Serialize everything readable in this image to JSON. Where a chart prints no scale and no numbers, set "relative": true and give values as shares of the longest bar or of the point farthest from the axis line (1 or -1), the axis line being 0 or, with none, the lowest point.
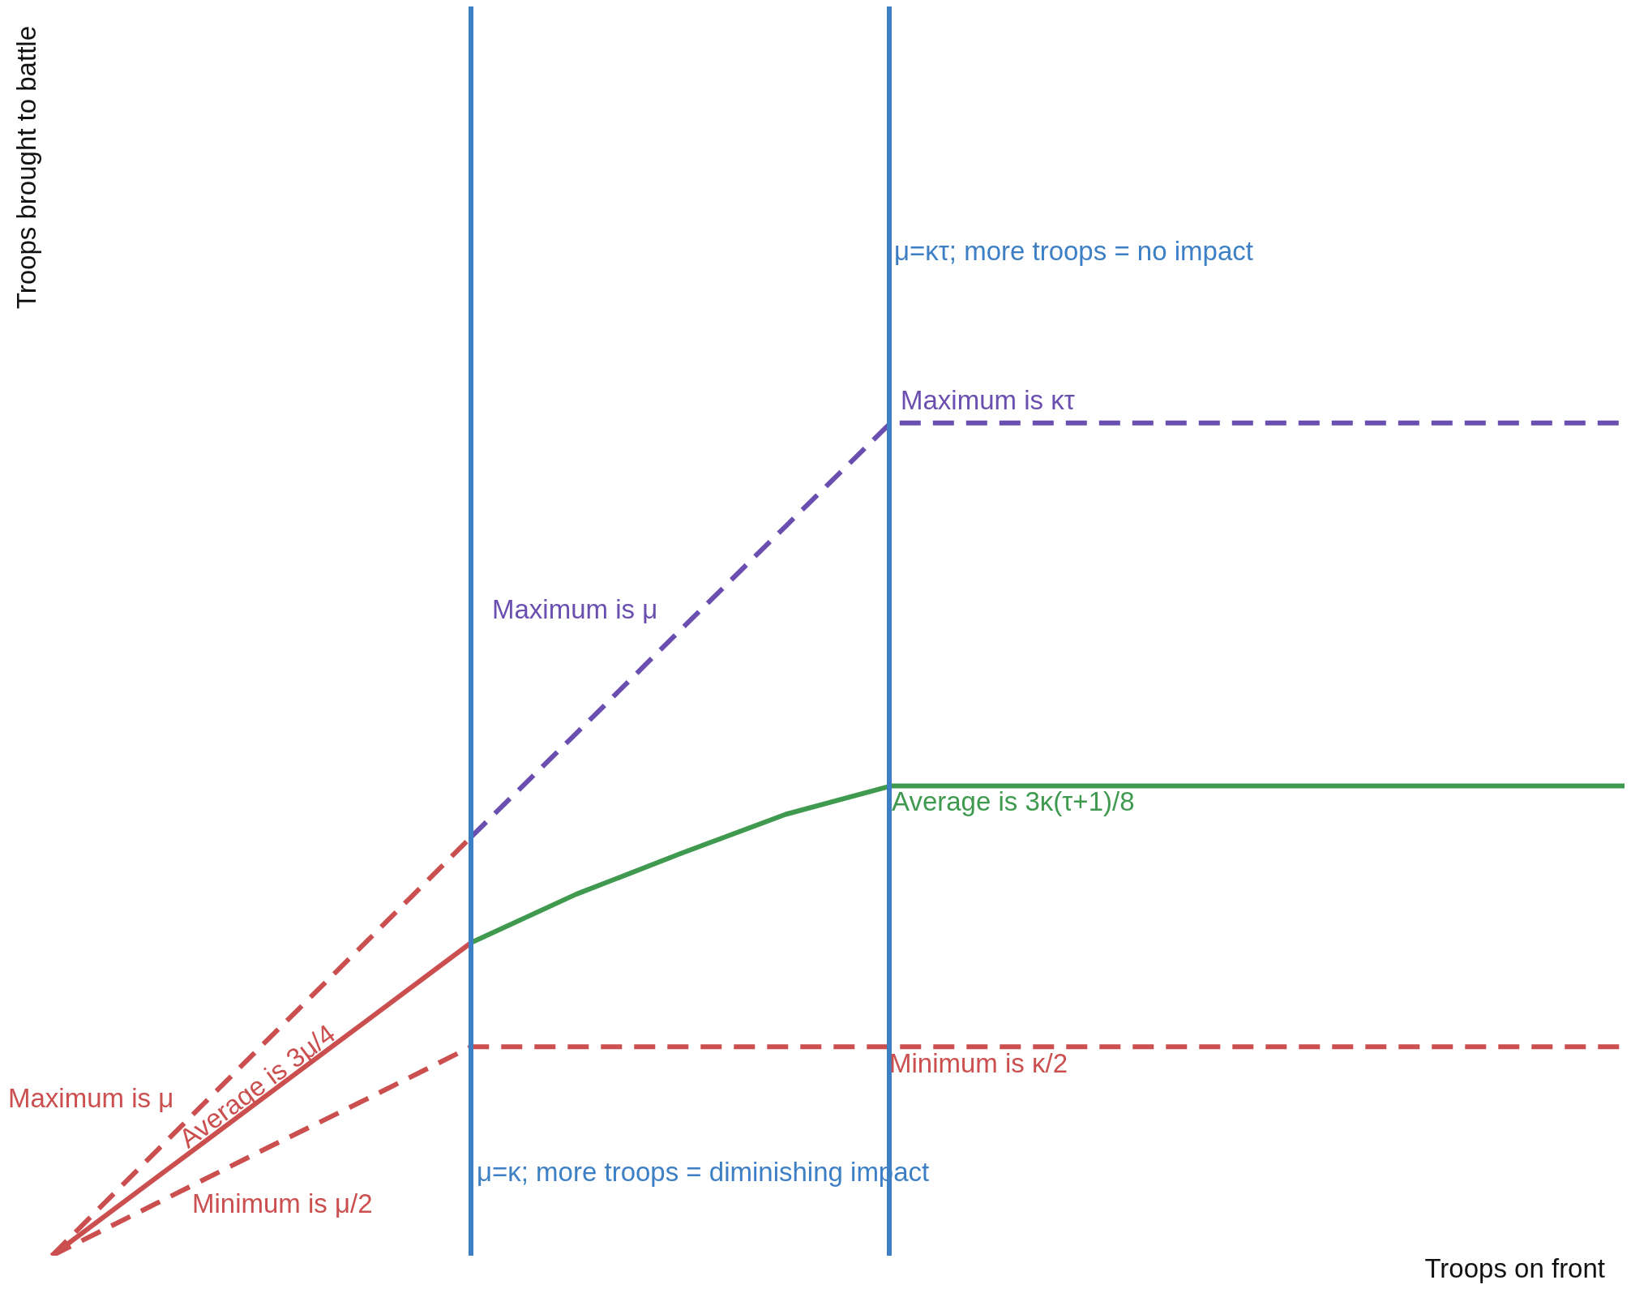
{
  "chart_data": {
    "type": "line",
    "relative": true,
    "xlabel": "Troops on front",
    "ylabel": "Troops brought to battle",
    "tick_labels": false,
    "categories": [
      null,
      null,
      null,
      null,
      null,
      null,
      null,
      null,
      null,
      null,
      null,
      null,
      null,
      null,
      null,
      null
    ],
    "series": [
      {
        "color": "#cb4f4f",
        "line_style": "dashed",
        "values": [
          0,
          0.126,
          0.252,
          0.377,
          0.503,
          null,
          null,
          null,
          null,
          null,
          null,
          null,
          null,
          null,
          null,
          null
        ]
      },
      {
        "color": "#6a4fb0",
        "line_style": "dashed",
        "values": [
          null,
          null,
          null,
          null,
          0.503,
          0.627,
          0.752,
          0.876,
          1,
          1,
          1,
          1,
          1,
          1,
          1,
          1
        ]
      },
      {
        "color": "#cb4f4f",
        "line_style": "solid",
        "values": [
          0,
          0.094,
          0.188,
          0.282,
          0.376,
          null,
          null,
          null,
          null,
          null,
          null,
          null,
          null,
          null,
          null,
          null
        ]
      },
      {
        "color": "#3f9a4f",
        "line_style": "solid",
        "values": [
          null,
          null,
          null,
          null,
          0.376,
          0.434,
          0.483,
          0.53,
          0.564,
          0.564,
          0.564,
          0.564,
          0.564,
          0.564,
          0.564,
          0.564
        ]
      },
      {
        "color": "#cb4f4f",
        "line_style": "dashed",
        "values": [
          0,
          0.063,
          0.126,
          0.188,
          0.251,
          0.251,
          0.251,
          0.251,
          0.251,
          0.251,
          0.251,
          0.251,
          0.251,
          0.251,
          0.251,
          0.251
        ]
      }
    ],
    "annotations": [
      "Maximum is μ",
      "Average is 3μ/4",
      "Minimum is μ/2",
      "Maximum is μ",
      "Maximum is κτ",
      "Average is 3κ(τ+1)/8",
      "Minimum is κ/2",
      "μ=κτ; more troops = no impact",
      "μ=κ; more troops = diminishing impact"
    ]
  }
}
